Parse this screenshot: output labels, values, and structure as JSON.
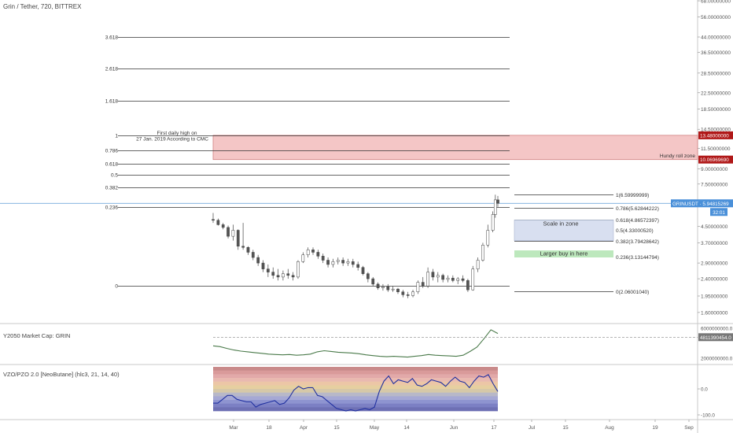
{
  "header": {
    "symbol_line": "Grin / Tether, 720, BITTREX"
  },
  "colors": {
    "candle_up": "#ffffff",
    "candle_down": "#555555",
    "fib_line": "#333333",
    "red_zone": "#f4c6c6",
    "red_zone_border": "#d08080",
    "blue_zone": "#d8dff0",
    "green_box": "#bde8bd",
    "price_line": "#5b9bd5",
    "price_tag": "#4a90d9",
    "red_tag": "#b01818",
    "mcap_line": "#4a7a4a",
    "vzo_line": "#2030a0"
  },
  "chart_data": [
    {
      "type": "candlestick",
      "title": "Grin / Tether, 720, BITTREX",
      "x_ticks": [
        "Mar",
        "18",
        "Apr",
        "15",
        "May",
        "14",
        "Jun",
        "17",
        "Jul",
        "15",
        "Aug",
        "19",
        "Sep"
      ],
      "y_scale": "log",
      "y_ticks": [
        "68.00000000",
        "56.00000000",
        "44.00000000",
        "36.50000000",
        "28.50000000",
        "22.50000000",
        "18.50000000",
        "14.50000000",
        "11.50000000",
        "9.00000000",
        "7.50000000",
        "5.90000000",
        "4.50000000",
        "3.70000000",
        "2.90000000",
        "2.40000000",
        "1.95000000",
        "1.60000000"
      ],
      "price_series": [
        {
          "d": "2019-02-22",
          "o": 4.9,
          "h": 5.3,
          "l": 4.7,
          "c": 4.85
        },
        {
          "d": "2019-02-24",
          "o": 4.85,
          "h": 4.95,
          "l": 4.55,
          "c": 4.6
        },
        {
          "d": "2019-02-26",
          "o": 4.6,
          "h": 4.7,
          "l": 4.35,
          "c": 4.45
        },
        {
          "d": "2019-02-28",
          "o": 4.45,
          "h": 4.55,
          "l": 3.9,
          "c": 4.0
        },
        {
          "d": "2019-03-02",
          "o": 4.0,
          "h": 4.6,
          "l": 3.8,
          "c": 4.3
        },
        {
          "d": "2019-03-04",
          "o": 4.3,
          "h": 4.35,
          "l": 3.4,
          "c": 3.55
        },
        {
          "d": "2019-03-06",
          "o": 3.55,
          "h": 4.7,
          "l": 3.4,
          "c": 3.5
        },
        {
          "d": "2019-03-08",
          "o": 3.5,
          "h": 3.55,
          "l": 3.2,
          "c": 3.3
        },
        {
          "d": "2019-03-10",
          "o": 3.3,
          "h": 3.4,
          "l": 3.0,
          "c": 3.1
        },
        {
          "d": "2019-03-12",
          "o": 3.1,
          "h": 3.2,
          "l": 2.8,
          "c": 2.9
        },
        {
          "d": "2019-03-14",
          "o": 2.9,
          "h": 3.0,
          "l": 2.6,
          "c": 2.7
        },
        {
          "d": "2019-03-16",
          "o": 2.7,
          "h": 2.85,
          "l": 2.45,
          "c": 2.6
        },
        {
          "d": "2019-03-18",
          "o": 2.6,
          "h": 2.75,
          "l": 2.4,
          "c": 2.5
        },
        {
          "d": "2019-03-20",
          "o": 2.5,
          "h": 2.7,
          "l": 2.35,
          "c": 2.45
        },
        {
          "d": "2019-03-22",
          "o": 2.45,
          "h": 2.65,
          "l": 2.35,
          "c": 2.55
        },
        {
          "d": "2019-03-24",
          "o": 2.55,
          "h": 2.7,
          "l": 2.4,
          "c": 2.5
        },
        {
          "d": "2019-03-26",
          "o": 2.5,
          "h": 2.6,
          "l": 2.35,
          "c": 2.45
        },
        {
          "d": "2019-03-28",
          "o": 2.45,
          "h": 3.0,
          "l": 2.4,
          "c": 2.95
        },
        {
          "d": "2019-03-30",
          "o": 2.95,
          "h": 3.3,
          "l": 2.9,
          "c": 3.2
        },
        {
          "d": "2019-04-01",
          "o": 3.2,
          "h": 3.5,
          "l": 3.1,
          "c": 3.4
        },
        {
          "d": "2019-04-03",
          "o": 3.4,
          "h": 3.5,
          "l": 3.2,
          "c": 3.3
        },
        {
          "d": "2019-04-05",
          "o": 3.3,
          "h": 3.4,
          "l": 3.05,
          "c": 3.15
        },
        {
          "d": "2019-04-07",
          "o": 3.15,
          "h": 3.25,
          "l": 2.9,
          "c": 3.0
        },
        {
          "d": "2019-04-09",
          "o": 3.0,
          "h": 3.1,
          "l": 2.75,
          "c": 2.85
        },
        {
          "d": "2019-04-11",
          "o": 2.85,
          "h": 3.05,
          "l": 2.75,
          "c": 2.95
        },
        {
          "d": "2019-04-13",
          "o": 2.95,
          "h": 3.1,
          "l": 2.85,
          "c": 3.0
        },
        {
          "d": "2019-04-15",
          "o": 3.0,
          "h": 3.1,
          "l": 2.8,
          "c": 2.9
        },
        {
          "d": "2019-04-17",
          "o": 2.9,
          "h": 3.05,
          "l": 2.8,
          "c": 2.95
        },
        {
          "d": "2019-04-19",
          "o": 2.95,
          "h": 3.05,
          "l": 2.75,
          "c": 2.85
        },
        {
          "d": "2019-04-21",
          "o": 2.85,
          "h": 2.95,
          "l": 2.65,
          "c": 2.75
        },
        {
          "d": "2019-04-23",
          "o": 2.75,
          "h": 2.8,
          "l": 2.5,
          "c": 2.55
        },
        {
          "d": "2019-04-25",
          "o": 2.55,
          "h": 2.6,
          "l": 2.3,
          "c": 2.4
        },
        {
          "d": "2019-04-27",
          "o": 2.4,
          "h": 2.45,
          "l": 2.2,
          "c": 2.25
        },
        {
          "d": "2019-04-29",
          "o": 2.25,
          "h": 2.3,
          "l": 2.1,
          "c": 2.15
        },
        {
          "d": "2019-05-01",
          "o": 2.15,
          "h": 2.25,
          "l": 2.08,
          "c": 2.18
        },
        {
          "d": "2019-05-03",
          "o": 2.18,
          "h": 2.25,
          "l": 2.05,
          "c": 2.1
        },
        {
          "d": "2019-05-05",
          "o": 2.1,
          "h": 2.2,
          "l": 2.05,
          "c": 2.12
        },
        {
          "d": "2019-05-07",
          "o": 2.12,
          "h": 2.15,
          "l": 2.0,
          "c": 2.05
        },
        {
          "d": "2019-05-09",
          "o": 2.05,
          "h": 2.1,
          "l": 1.92,
          "c": 1.98
        },
        {
          "d": "2019-05-11",
          "o": 1.98,
          "h": 2.05,
          "l": 1.9,
          "c": 1.96
        },
        {
          "d": "2019-05-13",
          "o": 1.96,
          "h": 2.1,
          "l": 1.92,
          "c": 2.05
        },
        {
          "d": "2019-05-15",
          "o": 2.05,
          "h": 2.35,
          "l": 2.0,
          "c": 2.3
        },
        {
          "d": "2019-05-17",
          "o": 2.3,
          "h": 2.45,
          "l": 2.15,
          "c": 2.2
        },
        {
          "d": "2019-05-19",
          "o": 2.2,
          "h": 2.75,
          "l": 2.15,
          "c": 2.6
        },
        {
          "d": "2019-05-21",
          "o": 2.6,
          "h": 2.7,
          "l": 2.35,
          "c": 2.45
        },
        {
          "d": "2019-05-23",
          "o": 2.45,
          "h": 2.6,
          "l": 2.3,
          "c": 2.5
        },
        {
          "d": "2019-05-25",
          "o": 2.5,
          "h": 2.55,
          "l": 2.3,
          "c": 2.38
        },
        {
          "d": "2019-05-27",
          "o": 2.38,
          "h": 2.5,
          "l": 2.3,
          "c": 2.42
        },
        {
          "d": "2019-05-29",
          "o": 2.42,
          "h": 2.5,
          "l": 2.3,
          "c": 2.35
        },
        {
          "d": "2019-05-31",
          "o": 2.35,
          "h": 2.45,
          "l": 2.25,
          "c": 2.4
        },
        {
          "d": "2019-06-02",
          "o": 2.4,
          "h": 2.5,
          "l": 2.3,
          "c": 2.35
        },
        {
          "d": "2019-06-04",
          "o": 2.35,
          "h": 2.4,
          "l": 2.05,
          "c": 2.1
        },
        {
          "d": "2019-06-06",
          "o": 2.1,
          "h": 2.8,
          "l": 2.08,
          "c": 2.7
        },
        {
          "d": "2019-06-08",
          "o": 2.7,
          "h": 3.1,
          "l": 2.6,
          "c": 3.0
        },
        {
          "d": "2019-06-10",
          "o": 3.0,
          "h": 3.7,
          "l": 2.95,
          "c": 3.6
        },
        {
          "d": "2019-06-12",
          "o": 3.6,
          "h": 4.6,
          "l": 3.5,
          "c": 4.3
        },
        {
          "d": "2019-06-14",
          "o": 4.3,
          "h": 5.4,
          "l": 4.2,
          "c": 5.2
        },
        {
          "d": "2019-06-15",
          "o": 5.2,
          "h": 6.6,
          "l": 5.0,
          "c": 6.2
        },
        {
          "d": "2019-06-16",
          "o": 6.2,
          "h": 6.5,
          "l": 5.7,
          "c": 5.95
        }
      ],
      "fib_extension": [
        {
          "label": "3.618",
          "price": 44.0
        },
        {
          "label": "2.618",
          "price": 30.0
        },
        {
          "label": "1.618",
          "price": 20.5
        },
        {
          "label": "1",
          "price": 13.48
        },
        {
          "label": "0.786",
          "price": 11.2
        },
        {
          "label": "0.618",
          "price": 9.6
        },
        {
          "label": "0.5",
          "price": 8.35
        },
        {
          "label": "0.382",
          "price": 7.2
        },
        {
          "label": "0.236",
          "price": 5.7
        },
        {
          "label": "0",
          "price": 2.2
        }
      ],
      "fib_retracement": [
        {
          "label": "1(6.59999999)",
          "price": 6.6
        },
        {
          "label": "0.786(5.62844222)",
          "price": 5.628
        },
        {
          "label": "0.618(4.86572397)",
          "price": 4.866
        },
        {
          "label": "0.5(4.33000520)",
          "price": 4.33
        },
        {
          "label": "0.382(3.79428642)",
          "price": 3.794
        },
        {
          "label": "0.236(3.13144794)",
          "price": 3.131
        },
        {
          "label": "0(2.06001040)",
          "price": 2.06
        }
      ],
      "red_zone": {
        "top": 13.48,
        "bottom": 10.07
      },
      "annotations": {
        "first_high_line1": "First daily high on",
        "first_high_line2": "27 Jan. 2019 According to CMC",
        "hundy_roll": "Hundy roll zone",
        "scale_in": "Scale in zone",
        "larger_buy": "Larger buy in here"
      },
      "price_tags": {
        "red_top": "13.48000000",
        "red_bottom": "10.06969690",
        "current": "GRINUSDT · 5.94815269",
        "countdown": "32:01",
        "current_price": 5.948
      }
    },
    {
      "type": "line",
      "title": "Y2050 Market Cap: GRIN",
      "y_ticks": [
        "6000000000.0",
        "2000000000.0"
      ],
      "current_tag": "4811390454.0",
      "ylim": [
        2000000000,
        6000000000
      ],
      "values": [
        3650000000.0,
        3550000000.0,
        3300000000.0,
        3100000000.0,
        2950000000.0,
        2850000000.0,
        2750000000.0,
        2650000000.0,
        2550000000.0,
        2500000000.0,
        2450000000.0,
        2500000000.0,
        2400000000.0,
        2450000000.0,
        2550000000.0,
        2850000000.0,
        3000000000.0,
        2900000000.0,
        2800000000.0,
        2750000000.0,
        2700000000.0,
        2600000000.0,
        2450000000.0,
        2350000000.0,
        2250000000.0,
        2200000000.0,
        2250000000.0,
        2200000000.0,
        2150000000.0,
        2250000000.0,
        2350000000.0,
        2500000000.0,
        2400000000.0,
        2350000000.0,
        2300000000.0,
        2250000000.0,
        2400000000.0,
        2900000000.0,
        3500000000.0,
        4600000000.0,
        5800000000.0,
        5300000000.0
      ]
    },
    {
      "type": "area",
      "title": "VZO/PZO 2.0 [NeoButane] (hlc3, 21, 14, 40)",
      "y_ticks": [
        "0.0",
        "-100.0"
      ],
      "ylim": [
        -100,
        100
      ],
      "values": [
        -55,
        -55,
        -40,
        -25,
        -25,
        -40,
        -45,
        -50,
        -50,
        -70,
        -60,
        -55,
        -50,
        -45,
        -60,
        -55,
        -35,
        -5,
        10,
        0,
        5,
        5,
        -25,
        -30,
        -45,
        -60,
        -75,
        -80,
        -85,
        -80,
        -85,
        -80,
        -75,
        -80,
        -70,
        -10,
        30,
        50,
        20,
        35,
        30,
        25,
        40,
        15,
        10,
        20,
        35,
        30,
        25,
        10,
        30,
        45,
        30,
        25,
        5,
        30,
        50,
        45,
        55,
        20,
        -10
      ]
    }
  ]
}
